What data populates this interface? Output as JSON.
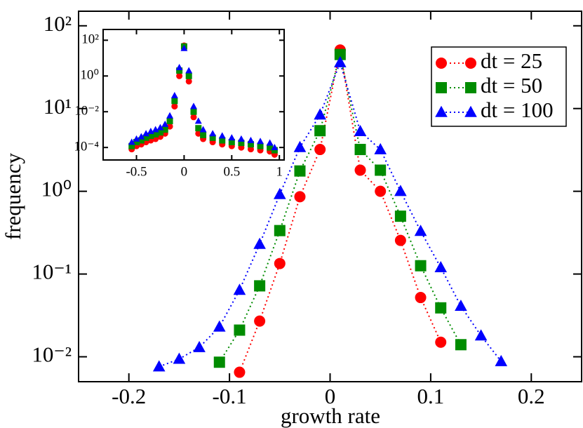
{
  "chart_data": [
    {
      "type": "line",
      "xlabel": "growth rate",
      "ylabel": "frequency",
      "x": [
        -0.17,
        -0.15,
        -0.13,
        -0.11,
        -0.09,
        -0.07,
        -0.05,
        -0.03,
        -0.01,
        0.01,
        0.03,
        0.05,
        0.07,
        0.09,
        0.11,
        0.13,
        0.15,
        0.17
      ],
      "series": [
        {
          "name": "dt = 25",
          "color": "#ff0000",
          "marker": "circle",
          "values": [
            null,
            null,
            null,
            null,
            0.0065,
            0.027,
            0.134,
            0.86,
            3.2,
            51,
            1.8,
            1.0,
            0.255,
            0.052,
            0.015,
            null,
            null,
            null
          ]
        },
        {
          "name": "dt = 50",
          "color": "#008c00",
          "marker": "square",
          "values": [
            null,
            null,
            null,
            0.0086,
            0.021,
            0.072,
            0.335,
            1.76,
            5.4,
            45,
            3.2,
            1.8,
            0.5,
            0.126,
            0.039,
            0.014,
            null,
            null
          ]
        },
        {
          "name": "dt = 100",
          "color": "#0000ff",
          "marker": "triangle",
          "values": [
            0.0076,
            0.0094,
            0.013,
            0.023,
            0.064,
            0.23,
            0.92,
            3.4,
            8.4,
            36,
            5.3,
            3.2,
            1.0,
            0.33,
            0.12,
            0.041,
            0.018,
            0.0088
          ]
        }
      ],
      "xlim": [
        -0.25,
        0.25
      ],
      "xticks": [
        -0.2,
        -0.1,
        0,
        0.1,
        0.2
      ],
      "ylim": [
        0.005,
        150
      ],
      "yscale": "log",
      "yticks": [
        {
          "value": 0.01,
          "label": "10⁻²"
        },
        {
          "value": 0.1,
          "label": "10⁻¹"
        },
        {
          "value": 1,
          "label": "10⁰"
        },
        {
          "value": 10,
          "label": "10¹"
        },
        {
          "value": 100,
          "label": "10²"
        }
      ],
      "linestyle": "dotted",
      "legend": "upper right"
    },
    {
      "type": "line",
      "x": [
        -0.55,
        -0.5,
        -0.45,
        -0.4,
        -0.35,
        -0.3,
        -0.25,
        -0.2,
        -0.15,
        -0.1,
        -0.05,
        0,
        0.05,
        0.1,
        0.15,
        0.2,
        0.3,
        0.4,
        0.5,
        0.6,
        0.7,
        0.8,
        0.9,
        0.95
      ],
      "series": [
        {
          "name": "dt = 25",
          "color": "#ff0000",
          "marker": "circle",
          "values": [
            8e-05,
            0.00012,
            0.00015,
            0.0002,
            0.00025,
            0.0003,
            0.0004,
            0.0006,
            0.0015,
            0.02,
            1.0,
            50,
            0.5,
            0.005,
            0.0006,
            0.0003,
            0.0002,
            0.00015,
            0.00012,
            0.0001,
            8e-05,
            7e-05,
            6e-05,
            4e-05
          ]
        },
        {
          "name": "dt = 50",
          "color": "#008c00",
          "marker": "square",
          "values": [
            0.00012,
            0.0002,
            0.00025,
            0.00035,
            0.00045,
            0.00055,
            0.0007,
            0.001,
            0.003,
            0.04,
            2.0,
            45,
            1.0,
            0.01,
            0.0012,
            0.0005,
            0.00035,
            0.00025,
            0.0002,
            0.00018,
            0.00015,
            0.00012,
            0.0001,
            7e-05
          ]
        },
        {
          "name": "dt = 100",
          "color": "#0000ff",
          "marker": "triangle",
          "values": [
            0.0002,
            0.0003,
            0.0004,
            0.0006,
            0.0008,
            0.001,
            0.0013,
            0.002,
            0.006,
            0.08,
            3.0,
            35,
            2.0,
            0.02,
            0.003,
            0.001,
            0.0006,
            0.00045,
            0.00035,
            0.0003,
            0.00025,
            0.00022,
            0.00018,
            0.0001
          ]
        }
      ],
      "xlim": [
        -0.85,
        1.05
      ],
      "xticks": [
        -0.5,
        0,
        0.5,
        1
      ],
      "ylim": [
        2e-05,
        400
      ],
      "yscale": "log",
      "yticks": [
        {
          "value": 0.0001,
          "label": "10⁻⁴"
        },
        {
          "value": 0.01,
          "label": "10⁻²"
        },
        {
          "value": 1,
          "label": "10⁰"
        },
        {
          "value": 100,
          "label": "10²"
        }
      ],
      "linestyle": "none"
    }
  ]
}
